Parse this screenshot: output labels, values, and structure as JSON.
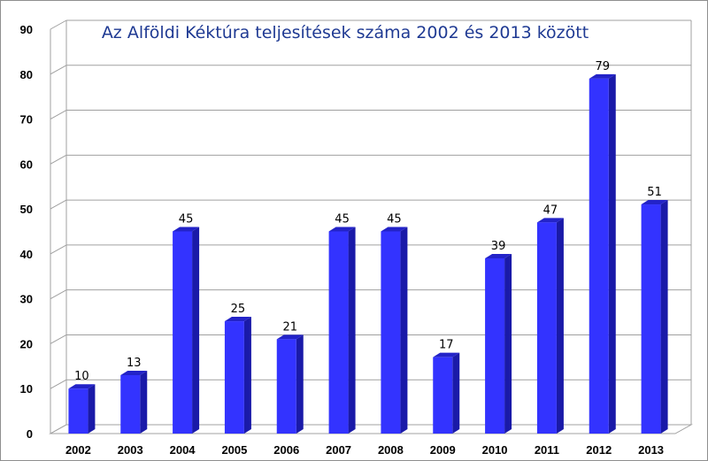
{
  "chart_data": {
    "type": "bar",
    "title": "Az Alföldi Kéktúra teljesítések száma 2002 és 2013 között",
    "xlabel": "",
    "ylabel": "",
    "categories": [
      "2002",
      "2003",
      "2004",
      "2005",
      "2006",
      "2007",
      "2008",
      "2009",
      "2010",
      "2011",
      "2012",
      "2013"
    ],
    "values": [
      10,
      13,
      45,
      25,
      21,
      45,
      45,
      17,
      39,
      47,
      79,
      51
    ],
    "data_labels": [
      "10",
      "13",
      "45",
      "25",
      "21",
      "45",
      "45",
      "17",
      "39",
      "47",
      "79",
      "51"
    ],
    "ylim": [
      0,
      90
    ],
    "yticks": [
      0,
      10,
      20,
      30,
      40,
      50,
      60,
      70,
      80,
      90
    ],
    "ytick_labels": [
      "0",
      "10",
      "20",
      "30",
      "40",
      "50",
      "60",
      "70",
      "80",
      "90"
    ],
    "grid": true,
    "style": "3d-column",
    "colors": {
      "bar_front": "#3333ff",
      "bar_side": "#1a1aa8",
      "bar_top": "#2323c8",
      "grid": "#a0a0a0",
      "title": "#1f3a93"
    }
  }
}
